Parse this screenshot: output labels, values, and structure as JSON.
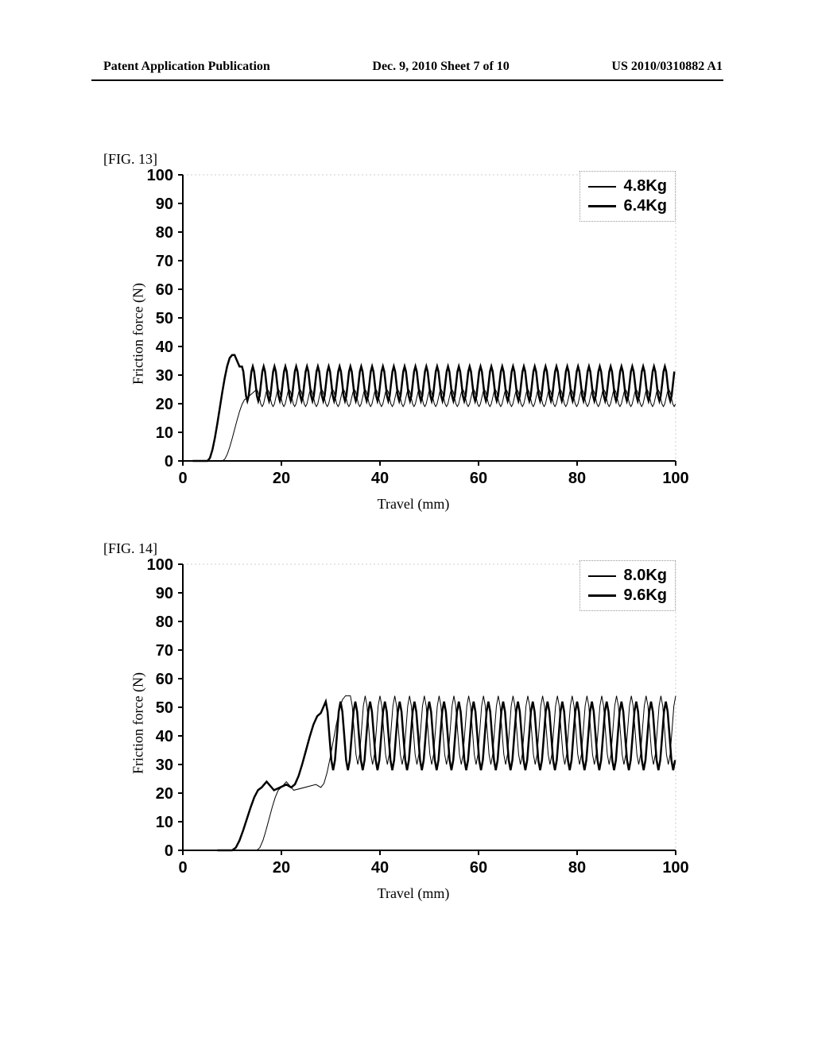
{
  "header": {
    "left": "Patent Application Publication",
    "center": "Dec. 9, 2010  Sheet 7 of 10",
    "right": "US 2010/0310882 A1"
  },
  "fig13": {
    "label": "[FIG. 13]",
    "chart": {
      "type": "line",
      "ylabel": "Friction force (N)",
      "xlabel": "Travel (mm)",
      "ylim": [
        0,
        100
      ],
      "xlim": [
        0,
        100
      ],
      "ytick_step": 10,
      "xtick_step": 20,
      "yticks": [
        0,
        10,
        20,
        30,
        40,
        50,
        60,
        70,
        80,
        90,
        100
      ],
      "xticks": [
        0,
        20,
        40,
        60,
        80,
        100
      ],
      "tick_fontsize": 20,
      "label_fontsize": 18,
      "background_color": "#ffffff",
      "axis_color": "#000000",
      "grid_color": "#cccccc",
      "legend": {
        "series1": "4.8Kg",
        "series2": "6.4Kg",
        "position": "top-right"
      },
      "series1": {
        "color": "#000000",
        "line_width": 1,
        "rise_start": 8,
        "rise_end": 13,
        "plateau_center": 22,
        "oscillation_amplitude": 3,
        "oscillation_period": 2.2
      },
      "series2": {
        "color": "#000000",
        "line_width": 2,
        "rise_start": 5,
        "rise_end": 10,
        "peak_value": 37,
        "plateau_center": 27,
        "oscillation_amplitude": 6,
        "oscillation_period": 2.2
      }
    }
  },
  "fig14": {
    "label": "[FIG. 14]",
    "chart": {
      "type": "line",
      "ylabel": "Friction force (N)",
      "xlabel": "Travel (mm)",
      "ylim": [
        0,
        100
      ],
      "xlim": [
        0,
        100
      ],
      "ytick_step": 10,
      "xtick_step": 20,
      "yticks": [
        0,
        10,
        20,
        30,
        40,
        50,
        60,
        70,
        80,
        90,
        100
      ],
      "xticks": [
        0,
        20,
        40,
        60,
        80,
        100
      ],
      "tick_fontsize": 20,
      "label_fontsize": 18,
      "background_color": "#ffffff",
      "axis_color": "#000000",
      "grid_color": "#cccccc",
      "legend": {
        "series1": "8.0Kg",
        "series2": "9.6Kg",
        "position": "top-right"
      },
      "series1": {
        "color": "#000000",
        "line_width": 1,
        "rise_start": 15,
        "step_at": 20,
        "step_value": 22,
        "second_rise_start": 28,
        "second_rise_end": 33,
        "plateau_center": 42,
        "oscillation_amplitude": 12,
        "oscillation_period": 3.0
      },
      "series2": {
        "color": "#000000",
        "line_width": 2,
        "rise_start": 10,
        "step_at": 16,
        "step_value": 22,
        "second_rise_start": 22,
        "second_rise_end": 28,
        "peak_value": 48,
        "plateau_center": 40,
        "oscillation_amplitude": 12,
        "oscillation_period": 3.0
      }
    }
  }
}
